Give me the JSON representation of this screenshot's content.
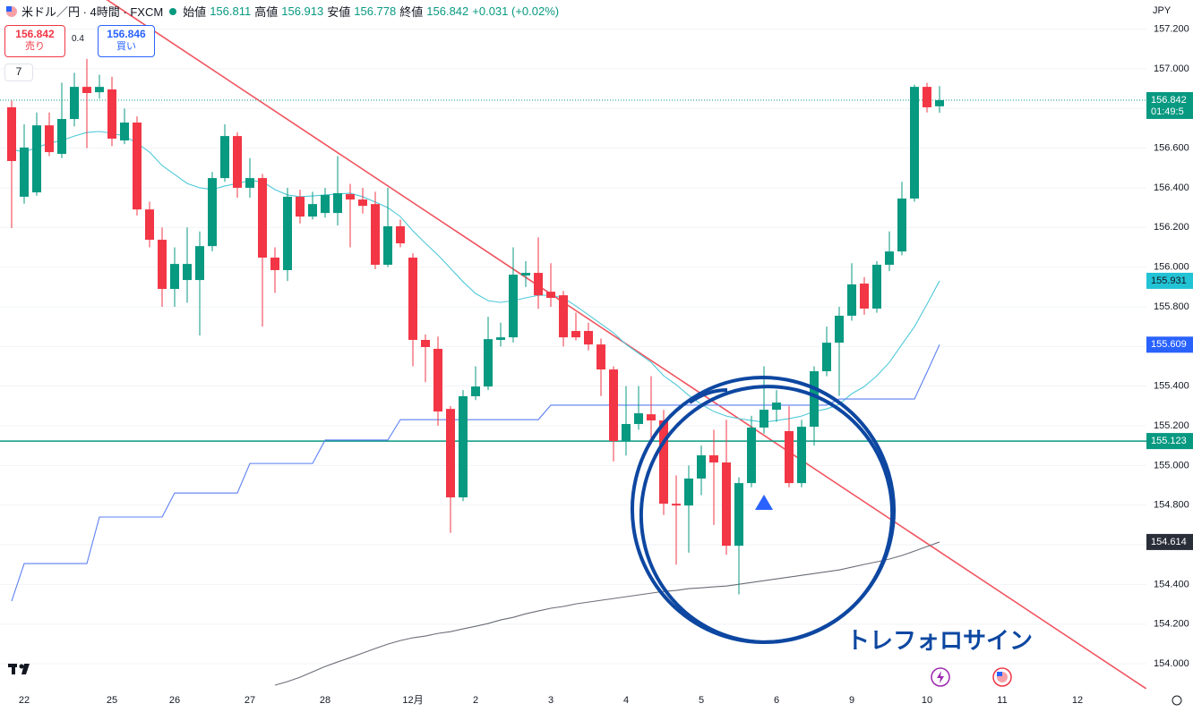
{
  "header": {
    "symbol": "米ドル／円 · 4時間 · FXCM",
    "open_label": "始値",
    "high_label": "高値",
    "low_label": "安値",
    "close_label": "終値",
    "change": "+0.031 (+0.02%)"
  },
  "trade_panel": {
    "sell_label": "売り",
    "spread": "0.4",
    "buy_price": "156.846",
    "buy_label": "買い",
    "indicators": "7"
  },
  "currency": "JPY",
  "countdown": "01:49:5",
  "annotation": "トレフォロサイン",
  "chart_data": {
    "type": "candlestick",
    "up_color": "#089981",
    "down_color": "#f23645",
    "grid": true,
    "ylim": [
      153.874,
      157.347
    ],
    "yticks": [
      {
        "value": 157.2,
        "label": "157.200"
      },
      {
        "value": 157.0,
        "label": "157.000"
      },
      {
        "value": 156.8,
        "label": "156.800"
      },
      {
        "value": 156.6,
        "label": "156.600"
      },
      {
        "value": 156.4,
        "label": "156.400"
      },
      {
        "value": 156.2,
        "label": "156.200"
      },
      {
        "value": 156.0,
        "label": "156.000"
      },
      {
        "value": 155.8,
        "label": "155.800"
      },
      {
        "value": 155.6,
        "label": "155.600"
      },
      {
        "value": 155.4,
        "label": "155.400"
      },
      {
        "value": 155.2,
        "label": "155.200"
      },
      {
        "value": 155.0,
        "label": "155.000"
      },
      {
        "value": 154.8,
        "label": "154.800"
      },
      {
        "value": 154.6,
        "label": "154.600"
      },
      {
        "value": 154.4,
        "label": "154.400"
      },
      {
        "value": 154.2,
        "label": "154.200"
      },
      {
        "value": 154.0,
        "label": "154.000"
      }
    ],
    "categories": [
      null,
      "22",
      null,
      null,
      null,
      null,
      null,
      null,
      "25",
      null,
      null,
      null,
      null,
      "26",
      null,
      null,
      null,
      null,
      null,
      "27",
      null,
      null,
      null,
      null,
      null,
      "28",
      null,
      null,
      null,
      null,
      null,
      null,
      "12月",
      null,
      null,
      null,
      null,
      "2",
      null,
      null,
      null,
      null,
      null,
      "3",
      null,
      null,
      null,
      null,
      null,
      "4",
      null,
      null,
      null,
      null,
      null,
      "5",
      null,
      null,
      null,
      null,
      null,
      "6",
      null,
      null,
      null,
      null,
      null,
      "9",
      null,
      null,
      null,
      null,
      null,
      "10",
      null,
      null,
      null,
      null,
      null,
      "11",
      null,
      null,
      null,
      null,
      null,
      "12"
    ],
    "open": [
      156.806,
      156.355,
      156.377,
      156.715,
      156.571,
      156.747,
      156.909,
      156.882,
      156.896,
      156.639,
      156.729,
      156.291,
      156.138,
      155.89,
      155.935,
      155.935,
      156.106,
      156.449,
      156.661,
      156.4,
      156.449,
      156.048,
      155.985,
      156.355,
      156.255,
      156.273,
      156.273,
      156.368,
      156.341,
      156.318,
      156.012,
      156.206,
      156.048,
      155.633,
      155.588,
      155.285,
      154.839,
      155.349,
      155.398,
      155.633,
      155.646,
      155.958,
      155.971,
      155.876,
      155.858,
      155.678,
      155.678,
      155.61,
      155.484,
      155.123,
      155.209,
      155.258,
      155.227,
      154.807,
      154.798,
      154.934,
      155.051,
      155.015,
      154.595,
      154.911,
      155.191,
      155.281,
      155.173,
      154.911,
      155.195,
      155.475,
      155.619,
      155.755,
      155.917,
      155.791,
      156.012,
      156.079,
      156.346,
      156.909,
      156.811,
      null,
      null,
      null,
      null,
      null,
      null,
      null,
      null,
      null,
      null,
      null
    ],
    "high": [
      156.84,
      156.72,
      156.78,
      156.78,
      156.93,
      156.98,
      157.05,
      156.97,
      156.96,
      156.8,
      156.76,
      156.33,
      156.2,
      156.1,
      156.2,
      156.18,
      156.48,
      156.72,
      156.68,
      156.55,
      156.47,
      156.1,
      156.4,
      156.39,
      156.38,
      156.4,
      156.56,
      156.42,
      156.4,
      156.38,
      156.4,
      156.24,
      156.07,
      155.66,
      155.65,
      155.3,
      155.38,
      155.5,
      155.75,
      155.72,
      156.1,
      156.03,
      156.15,
      156.02,
      155.88,
      155.77,
      155.72,
      155.64,
      155.5,
      155.4,
      155.4,
      155.45,
      155.28,
      154.95,
      155.0,
      155.1,
      155.18,
      155.23,
      154.94,
      155.25,
      155.5,
      155.38,
      155.3,
      155.23,
      155.5,
      155.7,
      155.8,
      156.02,
      155.95,
      156.03,
      156.18,
      156.43,
      156.92,
      156.93,
      156.913,
      null,
      null,
      null,
      null,
      null,
      null,
      null,
      null,
      null,
      null,
      null
    ],
    "low": [
      156.197,
      156.32,
      156.36,
      156.56,
      156.55,
      156.71,
      156.6,
      156.85,
      156.61,
      156.62,
      156.26,
      156.1,
      155.8,
      155.8,
      155.82,
      155.655,
      156.08,
      156.43,
      156.35,
      156.35,
      155.7,
      155.87,
      155.93,
      156.22,
      156.24,
      156.25,
      156.21,
      156.1,
      156.27,
      155.99,
      156.0,
      156.1,
      155.5,
      155.42,
      155.2,
      154.66,
      154.82,
      155.33,
      155.38,
      155.6,
      155.62,
      155.9,
      155.79,
      155.8,
      155.6,
      155.63,
      155.58,
      155.35,
      155.02,
      155.05,
      155.18,
      155.12,
      154.75,
      154.5,
      154.56,
      154.85,
      154.7,
      154.55,
      154.35,
      154.89,
      155.16,
      155.22,
      154.89,
      154.89,
      155.1,
      155.45,
      155.35,
      155.73,
      155.76,
      155.77,
      155.98,
      156.06,
      156.33,
      156.78,
      156.778,
      null,
      null,
      null,
      null,
      null,
      null,
      null,
      null,
      null,
      null,
      null
    ],
    "close": [
      156.535,
      156.603,
      156.715,
      156.58,
      156.747,
      156.909,
      156.878,
      156.909,
      156.648,
      156.729,
      156.291,
      156.138,
      155.89,
      156.016,
      156.016,
      156.106,
      156.449,
      156.661,
      156.4,
      156.449,
      156.048,
      155.985,
      156.355,
      156.255,
      156.318,
      156.364,
      156.373,
      156.341,
      156.309,
      156.012,
      156.206,
      156.12,
      155.633,
      155.597,
      155.272,
      154.839,
      155.349,
      155.398,
      155.637,
      155.646,
      155.962,
      155.971,
      155.858,
      155.845,
      155.646,
      155.646,
      155.61,
      155.484,
      155.123,
      155.209,
      155.263,
      155.227,
      154.807,
      154.798,
      154.934,
      155.051,
      155.015,
      154.595,
      154.911,
      155.191,
      155.281,
      155.317,
      154.911,
      155.195,
      155.475,
      155.619,
      155.755,
      155.913,
      155.791,
      156.012,
      156.079,
      156.346,
      156.909,
      156.806,
      156.842,
      null,
      null,
      null,
      null,
      null,
      null,
      null,
      null,
      null,
      null,
      null
    ],
    "lines": [
      {
        "color": "#4fc9d8",
        "tag_color": "#22c3d5",
        "values": [
          156.594,
          156.58,
          156.603,
          156.625,
          156.639,
          156.661,
          156.679,
          156.684,
          156.675,
          156.661,
          156.625,
          156.58,
          156.512,
          156.467,
          156.422,
          156.4,
          156.391,
          156.409,
          156.422,
          156.436,
          156.431,
          156.391,
          156.364,
          156.355,
          156.359,
          156.364,
          156.368,
          156.373,
          156.355,
          156.328,
          156.3,
          156.255,
          156.183,
          156.12,
          156.061,
          155.994,
          155.926,
          155.867,
          155.831,
          155.822,
          155.831,
          155.845,
          155.858,
          155.858,
          155.845,
          155.804,
          155.759,
          155.714,
          155.669,
          155.61,
          155.565,
          155.52,
          155.452,
          155.407,
          155.353,
          155.308,
          155.272,
          155.249,
          155.236,
          155.227,
          155.218,
          155.227,
          155.236,
          155.249,
          155.272,
          155.285,
          155.308,
          155.362,
          155.398,
          155.452,
          155.52,
          155.61,
          155.7,
          155.813,
          155.931,
          null,
          null,
          null,
          null,
          null,
          null,
          null,
          null,
          null,
          null,
          null
        ]
      },
      {
        "color": "#5b7ff2",
        "tag_color": "#2962ff",
        "values": [
          154.316,
          154.505,
          154.505,
          154.505,
          154.505,
          154.505,
          154.505,
          154.74,
          154.74,
          154.74,
          154.74,
          154.74,
          154.74,
          154.861,
          154.861,
          154.861,
          154.861,
          154.861,
          154.861,
          155.01,
          155.01,
          155.01,
          155.01,
          155.01,
          155.01,
          155.128,
          155.128,
          155.128,
          155.128,
          155.128,
          155.128,
          155.231,
          155.231,
          155.231,
          155.231,
          155.231,
          155.231,
          155.231,
          155.231,
          155.231,
          155.231,
          155.231,
          155.231,
          155.304,
          155.304,
          155.304,
          155.304,
          155.304,
          155.304,
          155.304,
          155.304,
          155.304,
          155.304,
          155.304,
          155.304,
          155.304,
          155.304,
          155.304,
          155.304,
          155.304,
          155.304,
          155.304,
          155.304,
          155.304,
          155.304,
          155.304,
          155.335,
          155.335,
          155.335,
          155.335,
          155.335,
          155.335,
          155.335,
          155.47,
          155.609,
          null,
          null,
          null,
          null,
          null,
          null,
          null,
          null,
          null,
          null,
          null
        ]
      },
      {
        "color": "#6b6e78",
        "tag_color": "#2a2e39",
        "values": [
          null,
          null,
          null,
          null,
          null,
          null,
          null,
          null,
          null,
          null,
          null,
          null,
          null,
          null,
          null,
          null,
          null,
          null,
          null,
          null,
          null,
          153.892,
          153.91,
          153.932,
          153.959,
          153.986,
          154.009,
          154.031,
          154.054,
          154.077,
          154.099,
          154.117,
          154.131,
          154.14,
          154.153,
          154.162,
          154.176,
          154.189,
          154.203,
          154.221,
          154.234,
          154.252,
          154.266,
          154.28,
          154.289,
          154.302,
          154.311,
          154.32,
          154.329,
          154.338,
          154.347,
          154.356,
          154.365,
          154.37,
          154.379,
          154.383,
          154.388,
          154.392,
          154.401,
          154.41,
          154.419,
          154.428,
          154.437,
          154.446,
          154.455,
          154.464,
          154.473,
          154.487,
          154.501,
          154.514,
          154.528,
          154.546,
          154.568,
          154.591,
          154.614,
          null,
          null,
          null,
          null,
          null,
          null,
          null,
          null,
          null,
          null,
          null
        ]
      }
    ],
    "levels": [
      {
        "value": 155.123,
        "color": "#089981"
      }
    ],
    "trendline": {
      "start": 157.667,
      "end": 154.104,
      "color": "#f0545f"
    }
  }
}
